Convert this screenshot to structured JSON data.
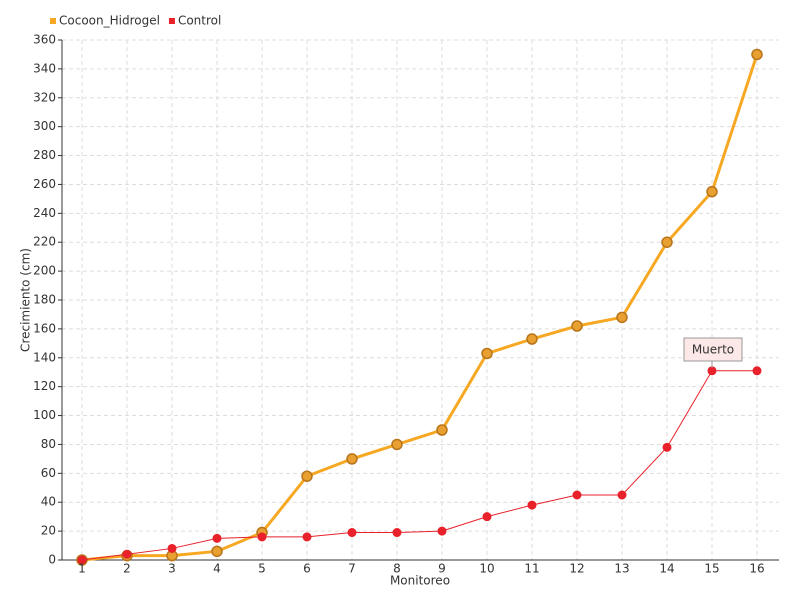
{
  "chart_data": {
    "type": "line",
    "x_label": "Monitoreo",
    "y_label": "Crecimiento (cm)",
    "categories": [
      "1",
      "2",
      "3",
      "4",
      "5",
      "6",
      "7",
      "8",
      "9",
      "10",
      "11",
      "12",
      "13",
      "14",
      "15",
      "16"
    ],
    "series": [
      {
        "name": "Cocoon_Hidrogel",
        "color": "#f7a823",
        "values": [
          0,
          3,
          3,
          6,
          19,
          58,
          70,
          80,
          90,
          143,
          153,
          162,
          168,
          220,
          255,
          350
        ]
      },
      {
        "name": "Control",
        "color": "#e8212a",
        "values": [
          0,
          4,
          8,
          15,
          16,
          16,
          19,
          19,
          20,
          30,
          38,
          45,
          45,
          78,
          131,
          131
        ]
      }
    ],
    "annotation": "Muerto",
    "ylim": [
      0,
      360
    ],
    "yticks": [
      0,
      20,
      40,
      60,
      80,
      100,
      120,
      140,
      160,
      180,
      200,
      220,
      240,
      260,
      280,
      300,
      320,
      340,
      360
    ],
    "grid": true,
    "legend": "top-left"
  }
}
